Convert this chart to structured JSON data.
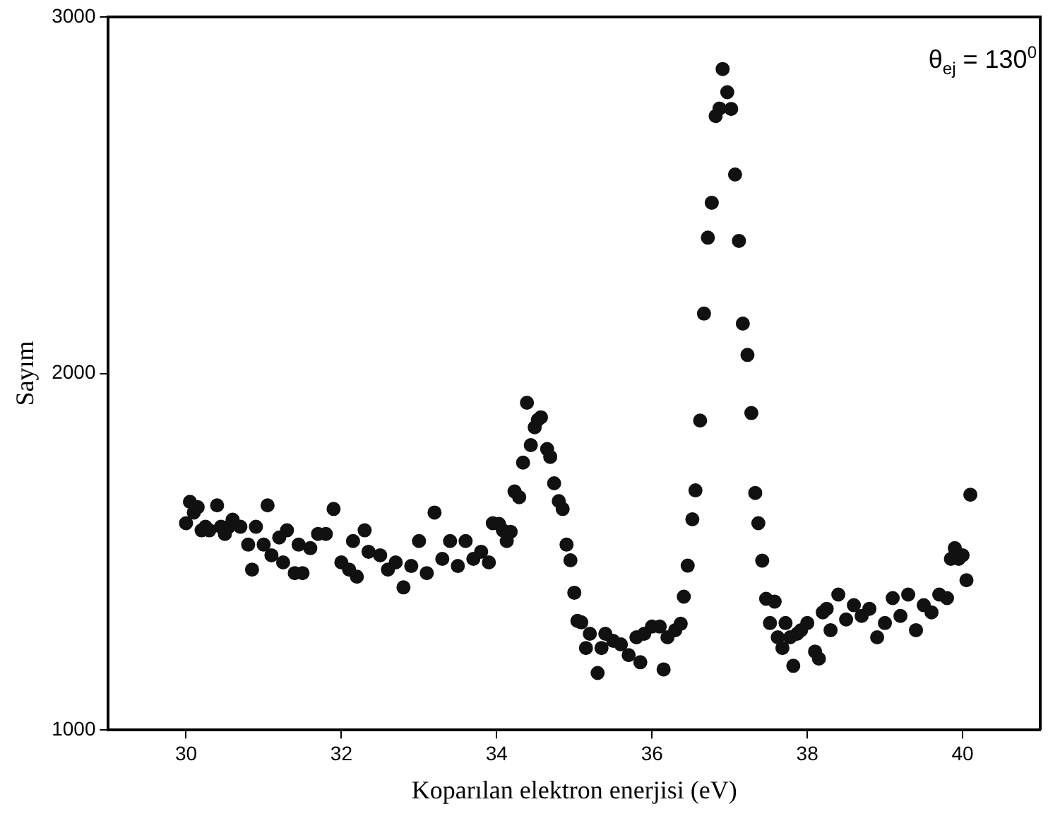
{
  "chart_data": {
    "type": "scatter",
    "xlabel": "Koparılan elektron enerjisi (eV)",
    "ylabel": "Sayım",
    "annotations": [
      "θ$_{ej}$ = 130$^{0}$"
    ],
    "xlim": [
      29,
      41
    ],
    "xticks": [
      30,
      32,
      34,
      36,
      38,
      40
    ],
    "ylim": [
      1000,
      3000
    ],
    "yticks": [
      1000,
      2000,
      3000
    ],
    "grid": false,
    "legend": false,
    "marker": "circle",
    "series": [
      {
        "color": "#111111",
        "x": [
          30.0,
          30.05,
          30.1,
          30.15,
          30.2,
          30.25,
          30.3,
          30.4,
          30.45,
          30.5,
          30.55,
          30.6,
          30.7,
          30.8,
          30.85,
          30.9,
          31.0,
          31.05,
          31.1,
          31.2,
          31.25,
          31.3,
          31.4,
          31.45,
          31.5,
          31.6,
          31.7,
          31.8,
          31.9,
          32.0,
          32.1,
          32.15,
          32.2,
          32.3,
          32.35,
          32.5,
          32.6,
          32.7,
          32.8,
          32.9,
          33.0,
          33.1,
          33.2,
          33.3,
          33.4,
          33.5,
          33.6,
          33.7,
          33.8,
          33.9,
          33.95,
          34.03,
          34.08,
          34.13,
          34.18,
          34.23,
          34.29,
          34.34,
          34.39,
          34.44,
          34.49,
          34.53,
          34.57,
          34.65,
          34.69,
          34.74,
          34.8,
          34.85,
          34.9,
          34.95,
          35.0,
          35.04,
          35.09,
          35.15,
          35.2,
          35.3,
          35.35,
          35.4,
          35.5,
          35.6,
          35.7,
          35.8,
          35.85,
          35.9,
          36.0,
          36.1,
          36.15,
          36.2,
          36.3,
          36.37,
          36.41,
          36.46,
          36.52,
          36.56,
          36.62,
          36.67,
          36.72,
          36.77,
          36.82,
          36.87,
          36.91,
          36.97,
          37.02,
          37.07,
          37.12,
          37.17,
          37.23,
          37.28,
          37.33,
          37.37,
          37.42,
          37.47,
          37.52,
          37.58,
          37.62,
          37.68,
          37.72,
          37.78,
          37.82,
          37.87,
          37.92,
          38.0,
          38.1,
          38.15,
          38.2,
          38.25,
          38.3,
          38.4,
          38.5,
          38.6,
          38.7,
          38.8,
          38.9,
          39.0,
          39.1,
          39.2,
          39.3,
          39.4,
          39.5,
          39.6,
          39.7,
          39.8,
          39.85,
          39.9,
          39.95,
          40.0,
          40.05,
          40.1
        ],
        "values": [
          1580,
          1640,
          1610,
          1625,
          1560,
          1570,
          1560,
          1630,
          1570,
          1550,
          1570,
          1590,
          1570,
          1520,
          1450,
          1570,
          1520,
          1630,
          1490,
          1540,
          1470,
          1560,
          1440,
          1520,
          1440,
          1510,
          1550,
          1550,
          1620,
          1470,
          1450,
          1530,
          1430,
          1560,
          1500,
          1490,
          1450,
          1470,
          1400,
          1460,
          1530,
          1440,
          1610,
          1480,
          1530,
          1460,
          1530,
          1480,
          1500,
          1470,
          1580,
          1578,
          1560,
          1530,
          1556,
          1669,
          1653,
          1750,
          1918,
          1799,
          1849,
          1870,
          1877,
          1788,
          1766,
          1692,
          1642,
          1620,
          1520,
          1476,
          1385,
          1306,
          1302,
          1230,
          1270,
          1160,
          1230,
          1270,
          1250,
          1240,
          1210,
          1260,
          1190,
          1270,
          1290,
          1290,
          1170,
          1260,
          1280,
          1298,
          1374,
          1461,
          1591,
          1672,
          1868,
          2168,
          2381,
          2479,
          2722,
          2743,
          2854,
          2789,
          2742,
          2558,
          2372,
          2140,
          2052,
          1889,
          1665,
          1580,
          1475,
          1368,
          1300,
          1360,
          1260,
          1230,
          1300,
          1260,
          1180,
          1270,
          1280,
          1300,
          1220,
          1200,
          1330,
          1340,
          1280,
          1380,
          1310,
          1350,
          1320,
          1340,
          1260,
          1300,
          1370,
          1320,
          1380,
          1280,
          1350,
          1330,
          1380,
          1370,
          1480,
          1510,
          1480,
          1490,
          1420,
          1660
        ]
      }
    ]
  }
}
